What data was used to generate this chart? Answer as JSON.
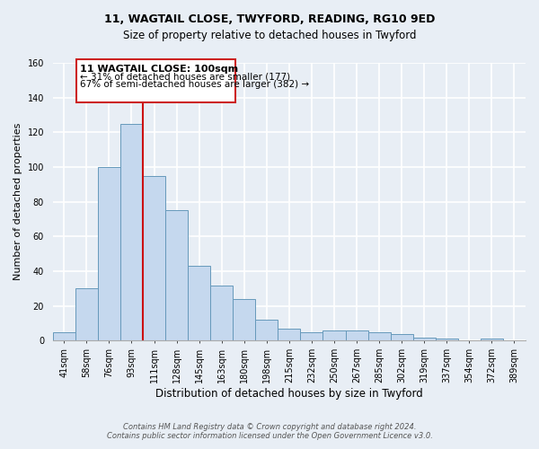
{
  "title": "11, WAGTAIL CLOSE, TWYFORD, READING, RG10 9ED",
  "subtitle": "Size of property relative to detached houses in Twyford",
  "xlabel": "Distribution of detached houses by size in Twyford",
  "ylabel": "Number of detached properties",
  "bin_labels": [
    "41sqm",
    "58sqm",
    "76sqm",
    "93sqm",
    "111sqm",
    "128sqm",
    "145sqm",
    "163sqm",
    "180sqm",
    "198sqm",
    "215sqm",
    "232sqm",
    "250sqm",
    "267sqm",
    "285sqm",
    "302sqm",
    "319sqm",
    "337sqm",
    "354sqm",
    "372sqm",
    "389sqm"
  ],
  "bar_heights": [
    5,
    30,
    100,
    125,
    95,
    75,
    43,
    32,
    24,
    12,
    7,
    5,
    6,
    6,
    5,
    4,
    2,
    1,
    0,
    1,
    0
  ],
  "bar_color": "#c5d8ee",
  "bar_edge_color": "#6699bb",
  "redline_bar_index": 4,
  "redline_label": "11 WAGTAIL CLOSE: 100sqm",
  "annotation_line1": "← 31% of detached houses are smaller (177)",
  "annotation_line2": "67% of semi-detached houses are larger (382) →",
  "ylim": [
    0,
    160
  ],
  "yticks": [
    0,
    20,
    40,
    60,
    80,
    100,
    120,
    140,
    160
  ],
  "box_facecolor": "#ffffff",
  "box_edgecolor": "#cc2222",
  "footer1": "Contains HM Land Registry data © Crown copyright and database right 2024.",
  "footer2": "Contains public sector information licensed under the Open Government Licence v3.0.",
  "background_color": "#e8eef5",
  "grid_color": "#ffffff",
  "title_fontsize": 9,
  "subtitle_fontsize": 8.5,
  "ylabel_fontsize": 8,
  "xlabel_fontsize": 8.5,
  "tick_fontsize": 7,
  "annotation_title_fontsize": 8,
  "annotation_body_fontsize": 7.5
}
